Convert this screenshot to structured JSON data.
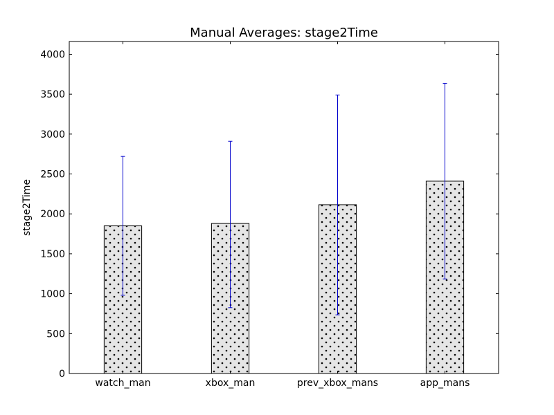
{
  "chart_data": {
    "type": "bar",
    "title": "Manual Averages: stage2Time",
    "xlabel": "",
    "ylabel": "stage2Time",
    "categories": [
      "watch_man",
      "xbox_man",
      "prev_xbox_mans",
      "app_mans"
    ],
    "values": [
      1850,
      1880,
      2115,
      2410
    ],
    "error_low": [
      980,
      825,
      735,
      1185
    ],
    "error_high": [
      2720,
      2910,
      3490,
      3635
    ],
    "ylim": [
      0,
      4160
    ],
    "yticks": [
      0,
      500,
      1000,
      1500,
      2000,
      2500,
      3000,
      3500,
      4000
    ],
    "grid": false,
    "bar_fill": "#e5e5e5",
    "bar_hatch": "dots",
    "bar_edge_color": "#000000",
    "error_bar_color": "#0000cc"
  }
}
